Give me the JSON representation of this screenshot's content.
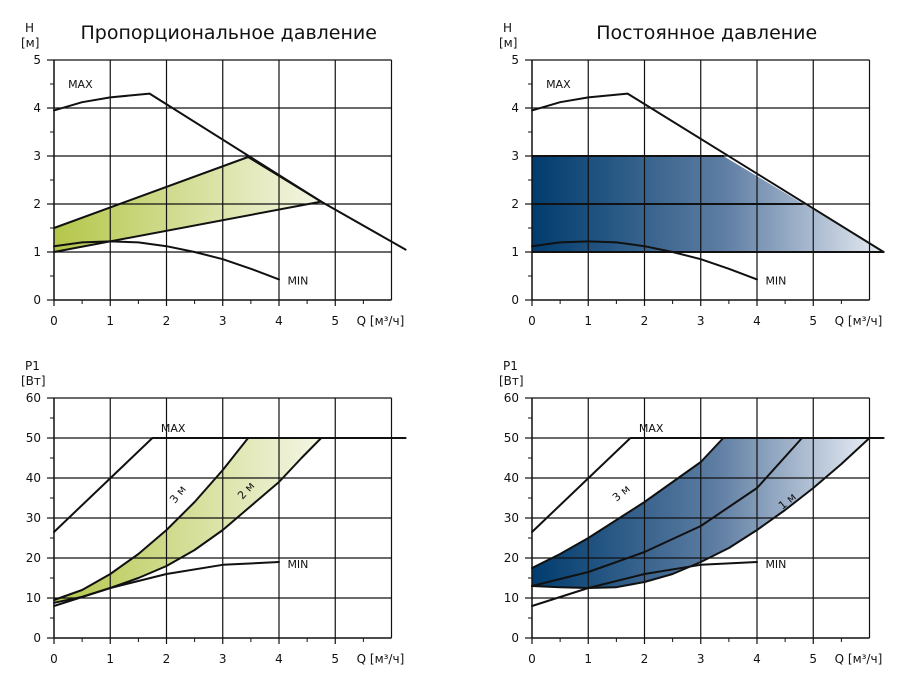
{
  "colors": {
    "green_fill": "#b5c64a",
    "blue_fill": "#003c6e",
    "grid": "#111111",
    "curve": "#111111"
  },
  "chart_data": [
    {
      "id": "h_prop",
      "type": "line",
      "title": "Пропорциональное давление",
      "ylabel_line1": "H",
      "ylabel_line2": "[м]",
      "xlabel": "Q [м³/ч]",
      "xlim": [
        0,
        6
      ],
      "ylim": [
        0,
        5
      ],
      "xticks": [
        "0",
        "1",
        "2",
        "3",
        "4",
        "5"
      ],
      "yticks": [
        "0",
        "1",
        "2",
        "3",
        "4",
        "5"
      ],
      "grid": true,
      "fill": "green",
      "region": [
        [
          0,
          1.5
        ],
        [
          3.45,
          2.98
        ],
        [
          4.75,
          2.05
        ],
        [
          0,
          1.0
        ]
      ],
      "series": [
        {
          "name": "MAX",
          "points": [
            [
              0,
              3.95
            ],
            [
              0.5,
              4.12
            ],
            [
              1.0,
              4.22
            ],
            [
              1.7,
              4.3
            ],
            [
              4.75,
              2.05
            ],
            [
              6.25,
              1.05
            ]
          ]
        },
        {
          "name": "MIN",
          "points": [
            [
              0,
              1.12
            ],
            [
              0.5,
              1.2
            ],
            [
              1.0,
              1.22
            ],
            [
              1.5,
              1.2
            ],
            [
              2.0,
              1.12
            ],
            [
              2.5,
              1.0
            ],
            [
              3.0,
              0.85
            ],
            [
              3.5,
              0.65
            ],
            [
              4.0,
              0.43
            ]
          ]
        },
        {
          "name": "",
          "points": [
            [
              0,
              1.5
            ],
            [
              3.45,
              2.98
            ],
            [
              4.75,
              2.05
            ]
          ]
        },
        {
          "name": "",
          "points": [
            [
              0,
              1.0
            ],
            [
              4.75,
              2.05
            ]
          ]
        }
      ],
      "annotations": [
        {
          "text": "MAX",
          "x": 0.25,
          "y": 4.42
        },
        {
          "text": "MIN",
          "x": 4.15,
          "y": 0.32
        }
      ]
    },
    {
      "id": "h_const",
      "type": "line",
      "title": "Постоянное давление",
      "ylabel_line1": "H",
      "ylabel_line2": "[м]",
      "xlabel": "Q [м³/ч]",
      "xlim": [
        0,
        6
      ],
      "ylim": [
        0,
        5
      ],
      "xticks": [
        "0",
        "1",
        "2",
        "3",
        "4",
        "5"
      ],
      "yticks": [
        "0",
        "1",
        "2",
        "3",
        "4",
        "5"
      ],
      "grid": true,
      "fill": "blue",
      "region": [
        [
          0,
          3.0
        ],
        [
          3.4,
          3.0
        ],
        [
          6.25,
          1.0
        ],
        [
          0,
          1.0
        ]
      ],
      "series": [
        {
          "name": "MAX",
          "points": [
            [
              0,
              3.95
            ],
            [
              0.5,
              4.12
            ],
            [
              1.0,
              4.22
            ],
            [
              1.7,
              4.3
            ],
            [
              6.25,
              1.0
            ]
          ]
        },
        {
          "name": "MIN",
          "points": [
            [
              0,
              1.12
            ],
            [
              0.5,
              1.2
            ],
            [
              1.0,
              1.22
            ],
            [
              1.5,
              1.2
            ],
            [
              2.0,
              1.12
            ],
            [
              2.5,
              1.0
            ],
            [
              3.0,
              0.85
            ],
            [
              3.5,
              0.65
            ],
            [
              4.0,
              0.43
            ]
          ]
        },
        {
          "name": "",
          "points": [
            [
              0,
              3.0
            ],
            [
              3.4,
              3.0
            ]
          ]
        },
        {
          "name": "",
          "points": [
            [
              0,
              2.0
            ],
            [
              4.8,
              2.0
            ]
          ]
        },
        {
          "name": "",
          "points": [
            [
              0,
              1.0
            ],
            [
              6.25,
              1.0
            ]
          ]
        }
      ],
      "annotations": [
        {
          "text": "MAX",
          "x": 0.25,
          "y": 4.42
        },
        {
          "text": "MIN",
          "x": 4.15,
          "y": 0.32
        }
      ]
    },
    {
      "id": "p_prop",
      "type": "line",
      "title": "",
      "ylabel_line1": "P1",
      "ylabel_line2": "[Вт]",
      "xlabel": "Q [м³/ч]",
      "xlim": [
        0,
        6
      ],
      "ylim": [
        0,
        60
      ],
      "xticks": [
        "0",
        "1",
        "2",
        "3",
        "4",
        "5"
      ],
      "yticks": [
        "0",
        "10",
        "20",
        "30",
        "40",
        "50",
        "60"
      ],
      "grid": true,
      "fill": "green",
      "region": [
        [
          0,
          9.5
        ],
        [
          0.5,
          12
        ],
        [
          1.0,
          16
        ],
        [
          1.5,
          21
        ],
        [
          2.0,
          27
        ],
        [
          2.5,
          34
        ],
        [
          3.0,
          42
        ],
        [
          3.45,
          50
        ],
        [
          4.75,
          50
        ],
        [
          4.4,
          45
        ],
        [
          4.0,
          39
        ],
        [
          3.5,
          33
        ],
        [
          3.0,
          27
        ],
        [
          2.5,
          22
        ],
        [
          2.0,
          18
        ],
        [
          1.5,
          15
        ],
        [
          1.0,
          12.5
        ],
        [
          0.5,
          10.3
        ],
        [
          0,
          8.8
        ]
      ],
      "series": [
        {
          "name": "MAX",
          "points": [
            [
              0,
              26.5
            ],
            [
              1.75,
              50
            ],
            [
              6.25,
              50
            ]
          ]
        },
        {
          "name": "MIN",
          "points": [
            [
              0,
              8.0
            ],
            [
              1.0,
              12.5
            ],
            [
              2.0,
              16.0
            ],
            [
              3.0,
              18.3
            ],
            [
              4.0,
              19.0
            ]
          ]
        },
        {
          "name": "3 м",
          "points": [
            [
              0,
              9.5
            ],
            [
              0.5,
              12
            ],
            [
              1.0,
              16
            ],
            [
              1.5,
              21
            ],
            [
              2.0,
              27
            ],
            [
              2.5,
              34
            ],
            [
              3.0,
              42
            ],
            [
              3.45,
              50
            ]
          ]
        },
        {
          "name": "2 м",
          "points": [
            [
              0,
              8.8
            ],
            [
              0.5,
              10.3
            ],
            [
              1.0,
              12.5
            ],
            [
              1.5,
              15
            ],
            [
              2.0,
              18
            ],
            [
              2.5,
              22
            ],
            [
              3.0,
              27
            ],
            [
              3.5,
              33
            ],
            [
              4.0,
              39
            ],
            [
              4.4,
              45
            ],
            [
              4.75,
              50
            ]
          ]
        }
      ],
      "annotations": [
        {
          "text": "MAX",
          "x": 1.9,
          "y": 51.5
        },
        {
          "text": "MIN",
          "x": 4.15,
          "y": 17.5
        },
        {
          "text": "3 м",
          "x": 2.15,
          "y": 33.5,
          "rotate": -52
        },
        {
          "text": "2 м",
          "x": 3.35,
          "y": 34.5,
          "rotate": -48
        }
      ]
    },
    {
      "id": "p_const",
      "type": "line",
      "title": "",
      "ylabel_line1": "P1",
      "ylabel_line2": "[Вт]",
      "xlabel": "Q [м³/ч]",
      "xlim": [
        0,
        6
      ],
      "ylim": [
        0,
        60
      ],
      "xticks": [
        "0",
        "1",
        "2",
        "3",
        "4",
        "5"
      ],
      "yticks": [
        "0",
        "10",
        "20",
        "30",
        "40",
        "50",
        "60"
      ],
      "grid": true,
      "fill": "blue",
      "region": [
        [
          0,
          17.5
        ],
        [
          0.5,
          21
        ],
        [
          1.0,
          25
        ],
        [
          1.5,
          29.5
        ],
        [
          2.0,
          34
        ],
        [
          2.5,
          39
        ],
        [
          3.0,
          44
        ],
        [
          3.4,
          50
        ],
        [
          6.0,
          50
        ],
        [
          5.5,
          43.5
        ],
        [
          5.0,
          37.5
        ],
        [
          4.5,
          32
        ],
        [
          4.0,
          27
        ],
        [
          3.5,
          22.5
        ],
        [
          3.0,
          19
        ],
        [
          2.5,
          16
        ],
        [
          2.0,
          14
        ],
        [
          1.5,
          12.7
        ],
        [
          1.0,
          12.5
        ],
        [
          0.5,
          12.7
        ],
        [
          0,
          13
        ]
      ],
      "series": [
        {
          "name": "MAX",
          "points": [
            [
              0,
              26.5
            ],
            [
              1.75,
              50
            ],
            [
              6.25,
              50
            ]
          ]
        },
        {
          "name": "MIN",
          "points": [
            [
              0,
              8.0
            ],
            [
              1.0,
              12.5
            ],
            [
              2.0,
              16.0
            ],
            [
              3.0,
              18.3
            ],
            [
              4.0,
              19.0
            ]
          ]
        },
        {
          "name": "3 м",
          "points": [
            [
              0,
              17.5
            ],
            [
              0.5,
              21
            ],
            [
              1.0,
              25
            ],
            [
              1.5,
              29.5
            ],
            [
              2.0,
              34
            ],
            [
              2.5,
              39
            ],
            [
              3.0,
              44
            ],
            [
              3.4,
              50
            ]
          ]
        },
        {
          "name": "",
          "points": [
            [
              0,
              13
            ],
            [
              1.0,
              16.5
            ],
            [
              2.0,
              21.5
            ],
            [
              3.0,
              28
            ],
            [
              4.0,
              37.5
            ],
            [
              4.8,
              50
            ]
          ]
        },
        {
          "name": "1 м",
          "points": [
            [
              0,
              13
            ],
            [
              0.5,
              12.7
            ],
            [
              1.0,
              12.5
            ],
            [
              1.5,
              12.7
            ],
            [
              2.0,
              14
            ],
            [
              2.5,
              16
            ],
            [
              3.0,
              19
            ],
            [
              3.5,
              22.5
            ],
            [
              4.0,
              27
            ],
            [
              4.5,
              32
            ],
            [
              5.0,
              37.5
            ],
            [
              5.5,
              43.5
            ],
            [
              6.0,
              50
            ]
          ]
        }
      ],
      "annotations": [
        {
          "text": "MAX",
          "x": 1.9,
          "y": 51.5
        },
        {
          "text": "MIN",
          "x": 4.15,
          "y": 17.5
        },
        {
          "text": "3 м",
          "x": 1.5,
          "y": 34,
          "rotate": -40
        },
        {
          "text": "1 м",
          "x": 4.45,
          "y": 32,
          "rotate": -40
        }
      ]
    }
  ]
}
